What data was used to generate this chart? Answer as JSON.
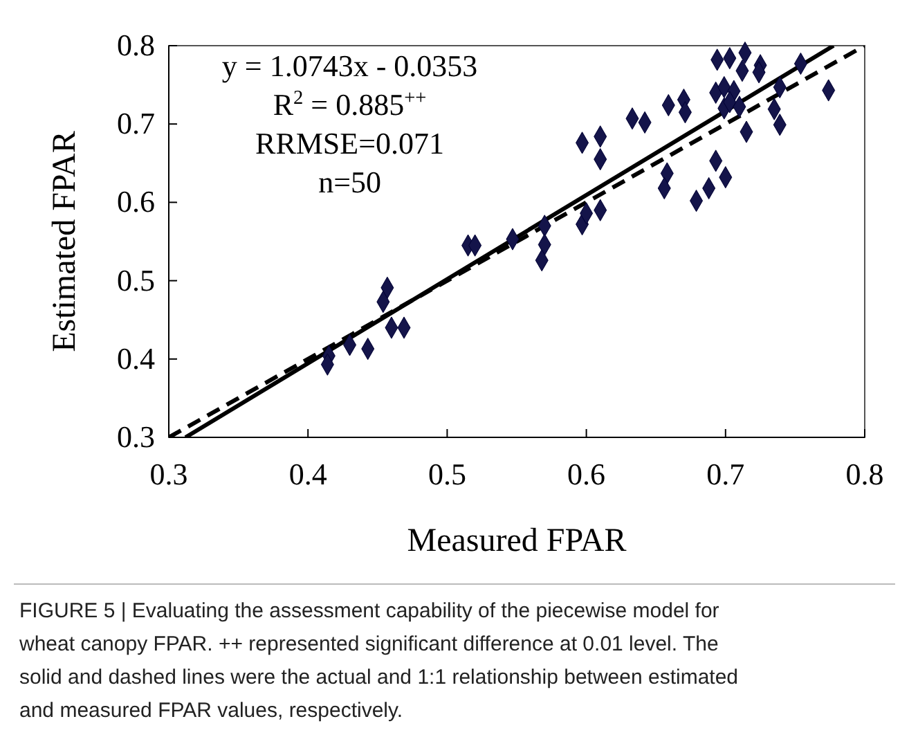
{
  "chart_data": {
    "type": "scatter",
    "xlabel": "Measured  FPAR",
    "ylabel": "Estimated  FPAR",
    "xlim": [
      0.3,
      0.8
    ],
    "ylim": [
      0.3,
      0.8
    ],
    "xticks": [
      0.3,
      0.4,
      0.5,
      0.6,
      0.7,
      0.8
    ],
    "yticks": [
      0.3,
      0.4,
      0.5,
      0.6,
      0.7,
      0.8
    ],
    "grid": false,
    "marker": "diamond",
    "series": [
      {
        "color": "#14144a",
        "x": [
          0.515,
          0.52,
          0.457,
          0.454,
          0.46,
          0.469,
          0.43,
          0.443,
          0.415,
          0.414,
          0.547,
          0.57,
          0.57,
          0.568,
          0.597,
          0.61,
          0.61,
          0.597,
          0.6,
          0.61,
          0.633,
          0.642,
          0.659,
          0.67,
          0.671,
          0.658,
          0.656,
          0.679,
          0.688,
          0.693,
          0.7,
          0.694,
          0.703,
          0.714,
          0.712,
          0.725,
          0.724,
          0.693,
          0.699,
          0.706,
          0.699,
          0.703,
          0.71,
          0.715,
          0.739,
          0.735,
          0.739,
          0.754,
          0.774
        ],
        "values": [
          0.545,
          0.545,
          0.491,
          0.473,
          0.44,
          0.44,
          0.418,
          0.413,
          0.404,
          0.393,
          0.553,
          0.57,
          0.546,
          0.526,
          0.676,
          0.684,
          0.655,
          0.572,
          0.586,
          0.59,
          0.707,
          0.702,
          0.724,
          0.731,
          0.715,
          0.637,
          0.618,
          0.602,
          0.618,
          0.653,
          0.632,
          0.782,
          0.784,
          0.791,
          0.768,
          0.775,
          0.766,
          0.74,
          0.747,
          0.742,
          0.72,
          0.728,
          0.722,
          0.69,
          0.747,
          0.719,
          0.699,
          0.777,
          0.743
        ]
      },
      {
        "type": "line",
        "color": "#000000",
        "line_style": "solid",
        "marker": "none",
        "x": [
          0.312,
          0.7776
        ],
        "values": [
          0.3,
          0.8
        ]
      },
      {
        "type": "line",
        "color": "#000000",
        "line_style": "dashed",
        "marker": "none",
        "x": [
          0.3,
          0.8
        ],
        "values": [
          0.3,
          0.8
        ]
      }
    ],
    "annotations": [
      "y = 1.0743x - 0.0353",
      "R$^{2}$ = 0.885$^{++}$",
      "RRMSE=0.071",
      "n=50",
      "FIGURE 5 | Evaluating the assessment capability of the piecewise model for wheat canopy FPAR. ++ represented significant difference at 0.01 level. The solid and dashed lines were the actual and 1:1 relationship between estimated and measured FPAR values, respectively."
    ]
  }
}
